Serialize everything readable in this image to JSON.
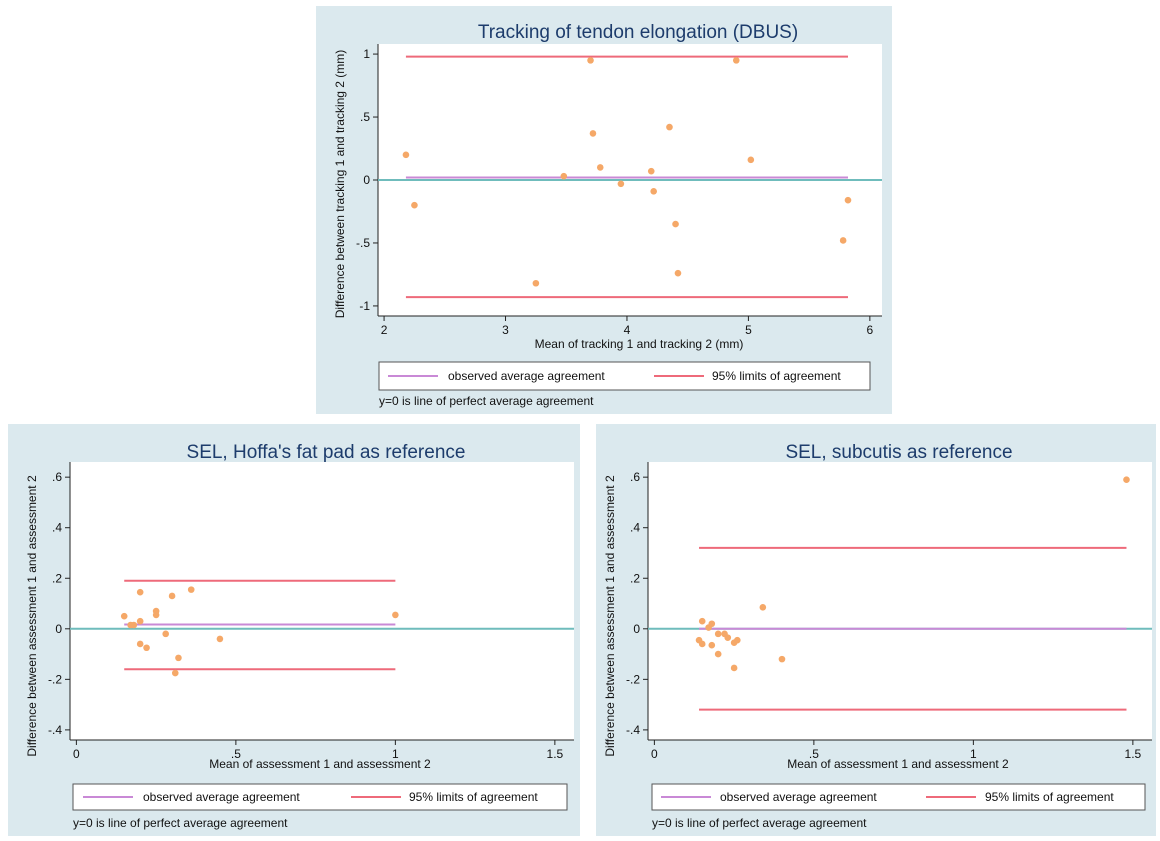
{
  "chart_data": [
    {
      "type": "scatter",
      "title": "Tracking of tendon elongation (DBUS)",
      "xlabel": "Mean of tracking 1 and tracking 2 (mm)",
      "ylabel": "Difference between tracking 1 and tracking 2 (mm)",
      "xlim": [
        1.95,
        6.1
      ],
      "ylim": [
        -1.08,
        1.08
      ],
      "xticks": [
        2,
        3,
        4,
        5,
        6
      ],
      "xtick_labels": [
        "2",
        "3",
        "4",
        "5",
        "6"
      ],
      "yticks": [
        -1,
        -0.5,
        0,
        0.5,
        1
      ],
      "ytick_labels": [
        "-1",
        "-.5",
        "0",
        ".5",
        "1"
      ],
      "lines": {
        "zero": 0,
        "observed_average": 0.02,
        "loa_upper": 0.98,
        "loa_lower": -0.93
      },
      "points": [
        [
          2.18,
          0.2
        ],
        [
          2.25,
          -0.2
        ],
        [
          3.25,
          -0.82
        ],
        [
          3.48,
          0.03
        ],
        [
          3.7,
          0.95
        ],
        [
          3.72,
          0.37
        ],
        [
          3.78,
          0.1
        ],
        [
          3.95,
          -0.03
        ],
        [
          4.2,
          0.07
        ],
        [
          4.22,
          -0.09
        ],
        [
          4.35,
          0.42
        ],
        [
          4.4,
          -0.35
        ],
        [
          4.42,
          -0.74
        ],
        [
          4.9,
          0.95
        ],
        [
          5.02,
          0.16
        ],
        [
          5.78,
          -0.48
        ],
        [
          5.82,
          -0.16
        ]
      ],
      "legend": [
        "observed average agreement",
        "95% limits of agreement"
      ],
      "legend_position": "bottom",
      "note": "y=0 is line of perfect average agreement",
      "colors": {
        "points": "#f5a868",
        "observed": "#c989d6",
        "loa": "#ee6a7a",
        "zero": "#6fbcbc",
        "background": "#dbe9ee",
        "title": "#1d3c6c"
      }
    },
    {
      "type": "scatter",
      "title": "SEL, Hoffa's fat pad as reference",
      "xlabel": "Mean of assessment 1 and assessment 2",
      "ylabel": "Difference between assessment 1 and assessment 2",
      "xlim": [
        -0.02,
        1.56
      ],
      "ylim": [
        -0.44,
        0.66
      ],
      "xticks": [
        0,
        0.5,
        1,
        1.5
      ],
      "xtick_labels": [
        "0",
        ".5",
        "1",
        "1.5"
      ],
      "yticks": [
        -0.4,
        -0.2,
        0,
        0.2,
        0.4,
        0.6
      ],
      "ytick_labels": [
        "-.4",
        "-.2",
        "0",
        ".2",
        ".4",
        ".6"
      ],
      "lines": {
        "zero": 0,
        "observed_average": 0.017,
        "loa_upper": 0.19,
        "loa_lower": -0.16
      },
      "points": [
        [
          0.15,
          0.05
        ],
        [
          0.17,
          0.015
        ],
        [
          0.18,
          0.015
        ],
        [
          0.2,
          0.03
        ],
        [
          0.2,
          0.145
        ],
        [
          0.2,
          -0.06
        ],
        [
          0.22,
          -0.075
        ],
        [
          0.25,
          0.055
        ],
        [
          0.25,
          0.07
        ],
        [
          0.28,
          -0.02
        ],
        [
          0.3,
          0.13
        ],
        [
          0.31,
          -0.175
        ],
        [
          0.32,
          -0.115
        ],
        [
          0.36,
          0.155
        ],
        [
          0.45,
          -0.04
        ],
        [
          1.0,
          0.055
        ]
      ],
      "legend": [
        "observed average agreement",
        "95% limits of agreement"
      ],
      "legend_position": "bottom",
      "note": "y=0 is line of perfect average agreement",
      "colors": {
        "points": "#f5a868",
        "observed": "#c989d6",
        "loa": "#ee6a7a",
        "zero": "#6fbcbc",
        "background": "#dbe9ee",
        "title": "#1d3c6c"
      }
    },
    {
      "type": "scatter",
      "title": "SEL, subcutis as reference",
      "xlabel": "Mean of assessment 1 and assessment 2",
      "ylabel": "Difference between assessment 1 and assessment 2",
      "xlim": [
        -0.02,
        1.56
      ],
      "ylim": [
        -0.44,
        0.66
      ],
      "xticks": [
        0,
        0.5,
        1,
        1.5
      ],
      "xtick_labels": [
        "0",
        ".5",
        "1",
        "1.5"
      ],
      "yticks": [
        -0.4,
        -0.2,
        0,
        0.2,
        0.4,
        0.6
      ],
      "ytick_labels": [
        "-.4",
        "-.2",
        "0",
        ".2",
        ".4",
        ".6"
      ],
      "lines": {
        "zero": 0,
        "observed_average": 0.0,
        "loa_upper": 0.32,
        "loa_lower": -0.32
      },
      "points": [
        [
          0.14,
          -0.045
        ],
        [
          0.15,
          0.03
        ],
        [
          0.15,
          -0.06
        ],
        [
          0.17,
          0.005
        ],
        [
          0.18,
          0.02
        ],
        [
          0.18,
          -0.065
        ],
        [
          0.2,
          -0.02
        ],
        [
          0.2,
          -0.1
        ],
        [
          0.22,
          -0.02
        ],
        [
          0.23,
          -0.035
        ],
        [
          0.25,
          -0.055
        ],
        [
          0.26,
          -0.045
        ],
        [
          0.25,
          -0.155
        ],
        [
          0.34,
          0.085
        ],
        [
          0.4,
          -0.12
        ],
        [
          1.48,
          0.59
        ]
      ],
      "legend": [
        "observed average agreement",
        "95% limits of agreement"
      ],
      "legend_position": "bottom",
      "note": "y=0 is line of perfect average agreement",
      "colors": {
        "points": "#f5a868",
        "observed": "#c989d6",
        "loa": "#ee6a7a",
        "zero": "#6fbcbc",
        "background": "#dbe9ee",
        "title": "#1d3c6c"
      }
    }
  ]
}
